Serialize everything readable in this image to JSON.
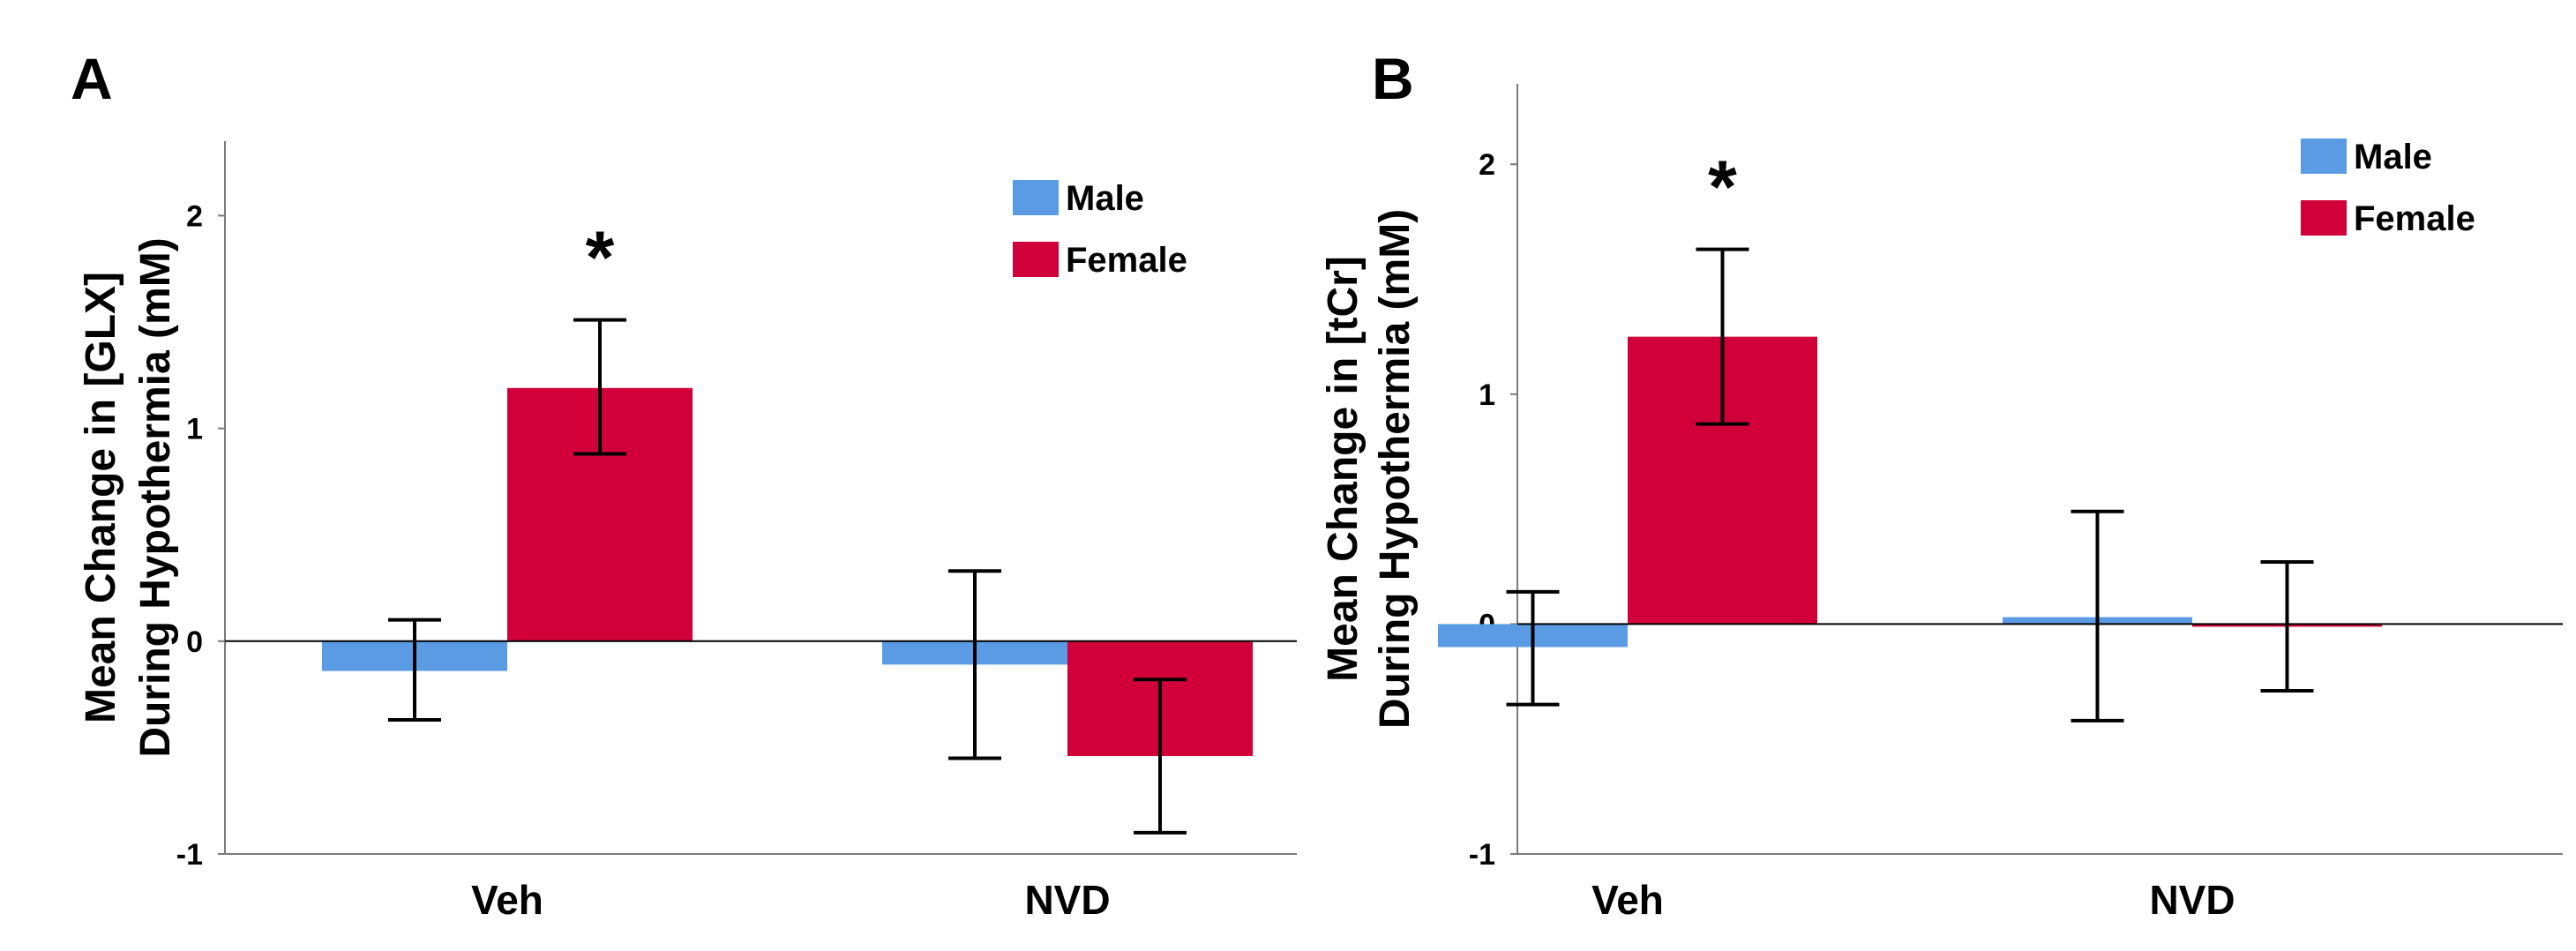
{
  "chart_data": [
    {
      "panel": "A",
      "type": "bar",
      "ylabel_lines": [
        "Mean Change in [GLX]",
        "During Hypothermia (mM)"
      ],
      "categories": [
        "Veh",
        "NVD"
      ],
      "series": [
        {
          "name": "Male",
          "color": "#5b9be4",
          "values": [
            -0.14,
            -0.11
          ],
          "err_low": [
            -0.37,
            -0.55
          ],
          "err_high": [
            0.1,
            0.33
          ]
        },
        {
          "name": "Female",
          "color": "#d1003b",
          "values": [
            1.19,
            -0.54
          ],
          "err_low": [
            0.88,
            -0.9
          ],
          "err_high": [
            1.51,
            -0.18
          ]
        }
      ],
      "ylim": [
        -1,
        2.35
      ],
      "yticks": [
        -1,
        0,
        1,
        2
      ],
      "ytick_labels": [
        "-1",
        "0",
        "1",
        "2"
      ],
      "significance": [
        {
          "category": "Veh",
          "series": "Female",
          "label": "*"
        }
      ],
      "legend": [
        "Male",
        "Female"
      ]
    },
    {
      "panel": "B",
      "type": "bar",
      "ylabel_lines": [
        "Mean Change in [tCr]",
        "During Hypothermia (mM)"
      ],
      "categories": [
        "Veh",
        "NVD"
      ],
      "series": [
        {
          "name": "Male",
          "color": "#5b9be4",
          "values": [
            -0.1,
            0.03
          ],
          "err_low": [
            -0.35,
            -0.42
          ],
          "err_high": [
            0.14,
            0.49
          ]
        },
        {
          "name": "Female",
          "color": "#d1003b",
          "values": [
            1.25,
            0.0
          ],
          "err_low": [
            0.87,
            -0.29
          ],
          "err_high": [
            1.63,
            0.27
          ]
        }
      ],
      "ylim": [
        -1,
        2.35
      ],
      "yticks": [
        -1,
        0,
        1,
        2
      ],
      "ytick_labels": [
        "-1",
        "0",
        "1",
        "2"
      ],
      "significance": [
        {
          "category": "Veh",
          "series": "Female",
          "label": "*"
        }
      ],
      "legend": [
        "Male",
        "Female"
      ]
    }
  ]
}
